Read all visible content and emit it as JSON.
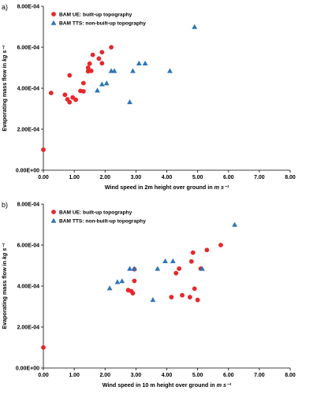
{
  "colors": {
    "ue": "#e8262b",
    "tts": "#2e75b6",
    "axis": "#000000"
  },
  "chart_data": [
    {
      "type": "scatter",
      "panel_label": "a)",
      "xlabel": "Wind speed in 2m height over ground in ",
      "xlabel_unit": "m s⁻¹",
      "ylabel": "Evaporating mass flow in ",
      "ylabel_unit": "kg s⁻¹",
      "xlim": [
        0,
        8
      ],
      "ylim": [
        0,
        0.0008
      ],
      "x_ticks": [
        "0.00",
        "1.00",
        "2.00",
        "3.00",
        "4.00",
        "5.00",
        "6.00",
        "7.00",
        "8.00"
      ],
      "y_ticks": [
        "0.00E+00",
        "2.00E-04",
        "4.00E-04",
        "6.00E-04",
        "8.00E-04"
      ],
      "legend_position": "top-left",
      "series": [
        {
          "name": "BAM UE: built-up topography",
          "marker": "circle",
          "points": [
            [
              0.0,
              0.0001
            ],
            [
              0.25,
              0.000377
            ],
            [
              0.7,
              0.000368
            ],
            [
              0.78,
              0.000346
            ],
            [
              0.85,
              0.000332
            ],
            [
              0.85,
              0.000463
            ],
            [
              0.95,
              0.000355
            ],
            [
              1.05,
              0.000344
            ],
            [
              1.2,
              0.000387
            ],
            [
              1.3,
              0.000385
            ],
            [
              1.3,
              0.000425
            ],
            [
              1.45,
              0.000483
            ],
            [
              1.45,
              0.0005
            ],
            [
              1.5,
              0.00052
            ],
            [
              1.55,
              0.000485
            ],
            [
              1.6,
              0.000563
            ],
            [
              1.8,
              0.000545
            ],
            [
              1.9,
              0.000576
            ],
            [
              1.9,
              0.000522
            ],
            [
              2.2,
              0.0006
            ]
          ]
        },
        {
          "name": "BAM TTS: non-built-up topography",
          "marker": "triangle",
          "points": [
            [
              1.75,
              0.00039
            ],
            [
              1.9,
              0.00042
            ],
            [
              2.05,
              0.000425
            ],
            [
              2.2,
              0.000485
            ],
            [
              2.3,
              0.000485
            ],
            [
              2.8,
              0.000333
            ],
            [
              2.9,
              0.000485
            ],
            [
              3.1,
              0.000522
            ],
            [
              3.3,
              0.000522
            ],
            [
              4.1,
              0.000485
            ],
            [
              4.9,
              0.0007
            ]
          ]
        }
      ]
    },
    {
      "type": "scatter",
      "panel_label": "b)",
      "xlabel": "Wind speed in 10 m height over ground in ",
      "xlabel_unit": "m s⁻¹",
      "ylabel": "Evaporating mass flow in ",
      "ylabel_unit": "kg s⁻¹",
      "xlim": [
        0,
        8
      ],
      "ylim": [
        0,
        0.0008
      ],
      "x_ticks": [
        "0.00",
        "1.00",
        "2.00",
        "3.00",
        "4.00",
        "5.00",
        "6.00",
        "7.00",
        "8.00"
      ],
      "y_ticks": [
        "0.00E+00",
        "2.00E-04",
        "4.00E-04",
        "6.00E-04",
        "8.00E-04"
      ],
      "legend_position": "top-left",
      "series": [
        {
          "name": "BAM UE: built-up topography",
          "marker": "circle",
          "points": [
            [
              0.0,
              0.0001
            ],
            [
              2.75,
              0.00038
            ],
            [
              2.85,
              0.000375
            ],
            [
              2.9,
              0.000365
            ],
            [
              2.95,
              0.000425
            ],
            [
              2.95,
              0.000482
            ],
            [
              4.15,
              0.000346
            ],
            [
              4.3,
              0.000463
            ],
            [
              4.4,
              0.000485
            ],
            [
              4.5,
              0.000355
            ],
            [
              4.75,
              0.000346
            ],
            [
              4.8,
              0.00052
            ],
            [
              4.85,
              0.000563
            ],
            [
              4.9,
              0.000387
            ],
            [
              5.0,
              0.000332
            ],
            [
              5.1,
              0.000485
            ],
            [
              5.3,
              0.000576
            ],
            [
              5.75,
              0.0006
            ]
          ]
        },
        {
          "name": "BAM TTS: non-built-up topography",
          "marker": "triangle",
          "points": [
            [
              2.15,
              0.00039
            ],
            [
              2.4,
              0.00042
            ],
            [
              2.55,
              0.000425
            ],
            [
              2.8,
              0.000485
            ],
            [
              2.95,
              0.000485
            ],
            [
              3.55,
              0.000333
            ],
            [
              3.7,
              0.000485
            ],
            [
              3.95,
              0.000522
            ],
            [
              4.2,
              0.000522
            ],
            [
              5.15,
              0.000485
            ],
            [
              6.2,
              0.0007
            ]
          ]
        }
      ]
    }
  ]
}
